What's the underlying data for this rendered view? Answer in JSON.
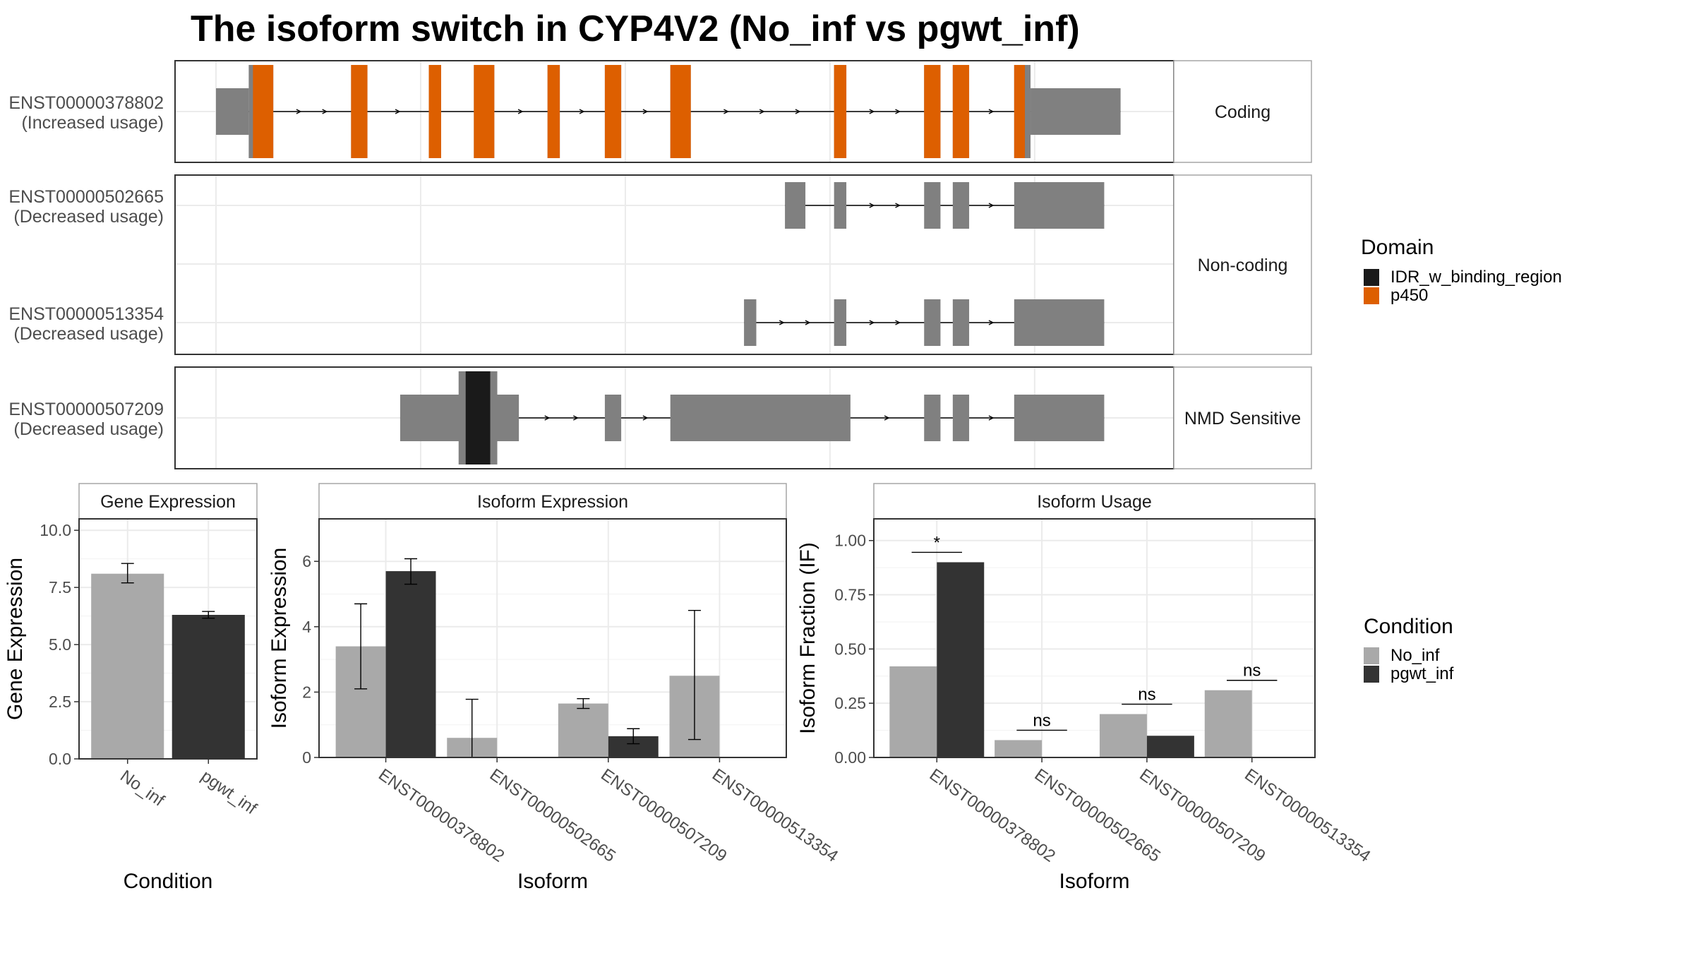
{
  "title": "The isoform switch in CYP4V2 (No_inf vs pgwt_inf)",
  "colors": {
    "exon": "#808080",
    "p450": "#DD5F00",
    "idr": "#1a1a1a",
    "no_inf": "#A9A9A9",
    "pgwt_inf": "#333333",
    "grid": "#EBEBEB",
    "strip_border": "#A6A6A6",
    "panel_border": "#333333"
  },
  "structure_panels": [
    {
      "strip": "Coding",
      "transcripts": [
        {
          "id": "ENST00000378802",
          "usage": "(Increased usage)",
          "utr5": [
            1.0,
            1.8
          ],
          "exons": [
            [
              1.8,
              2.4
            ],
            [
              4.3,
              4.7
            ],
            [
              6.2,
              6.5
            ],
            [
              7.3,
              7.8
            ],
            [
              9.1,
              9.4
            ],
            [
              10.5,
              10.9
            ],
            [
              12.1,
              12.6
            ],
            [
              16.1,
              16.4
            ],
            [
              18.3,
              18.7
            ],
            [
              19.0,
              19.4
            ],
            [
              20.5,
              20.9
            ]
          ],
          "utr3": [
            20.9,
            23.1
          ],
          "domains": [
            {
              "type": "p450",
              "from": 1.8,
              "to": 20.9
            }
          ]
        }
      ]
    },
    {
      "strip": "Non-coding",
      "transcripts": [
        {
          "id": "ENST00000502665",
          "usage": "(Decreased usage)",
          "exons": [
            [
              14.9,
              15.4
            ],
            [
              16.1,
              16.4
            ],
            [
              18.3,
              18.7
            ],
            [
              19.0,
              19.4
            ],
            [
              20.5,
              22.7
            ]
          ],
          "domains": []
        },
        {
          "id": "ENST00000513354",
          "usage": "(Decreased usage)",
          "exons": [
            [
              13.9,
              14.2
            ],
            [
              16.1,
              16.4
            ],
            [
              18.3,
              18.7
            ],
            [
              19.0,
              19.4
            ],
            [
              20.5,
              22.7
            ]
          ],
          "domains": []
        }
      ]
    },
    {
      "strip": "NMD Sensitive",
      "transcripts": [
        {
          "id": "ENST00000507209",
          "usage": "(Decreased usage)",
          "exons": [
            [
              5.5,
              8.4
            ],
            [
              10.5,
              10.9
            ],
            [
              12.1,
              16.5
            ],
            [
              18.3,
              18.7
            ],
            [
              19.0,
              19.4
            ],
            [
              20.5,
              22.7
            ]
          ],
          "domains": [
            {
              "type": "IDR_w_binding_region",
              "from": 7.1,
              "to": 7.7
            }
          ]
        }
      ]
    }
  ],
  "legend_domain": {
    "title": "Domain",
    "items": [
      {
        "label": "IDR_w_binding_region",
        "color": "#1a1a1a"
      },
      {
        "label": "p450",
        "color": "#DD5F00"
      }
    ]
  },
  "legend_condition": {
    "title": "Condition",
    "items": [
      {
        "label": "No_inf",
        "color": "#A9A9A9"
      },
      {
        "label": "pgwt_inf",
        "color": "#333333"
      }
    ]
  },
  "chart_data": [
    {
      "type": "bar",
      "strip": "Gene Expression",
      "xlabel": "Condition",
      "ylabel": "Gene Expression",
      "categories": [
        "No_inf",
        "pgwt_inf"
      ],
      "values": [
        8.1,
        6.3
      ],
      "errors": [
        [
          7.7,
          8.55
        ],
        [
          6.15,
          6.45
        ]
      ],
      "ylim": [
        0,
        10.5
      ],
      "yticks": [
        "0.0",
        "2.5",
        "5.0",
        "7.5",
        "10.0"
      ]
    },
    {
      "type": "bar",
      "strip": "Isoform Expression",
      "xlabel": "Isoform",
      "ylabel": "Isoform Expression",
      "categories": [
        "ENST00000378802",
        "ENST00000502665",
        "ENST00000507209",
        "ENST00000513354"
      ],
      "series": [
        {
          "name": "No_inf",
          "values": [
            3.4,
            0.6,
            1.65,
            2.5
          ],
          "errors": [
            [
              2.1,
              4.7
            ],
            [
              0.0,
              1.78
            ],
            [
              1.5,
              1.8
            ],
            [
              0.55,
              4.5
            ]
          ]
        },
        {
          "name": "pgwt_inf",
          "values": [
            5.7,
            0.0,
            0.65,
            0.0
          ],
          "errors": [
            [
              5.3,
              6.08
            ],
            [
              0.0,
              0.0
            ],
            [
              0.42,
              0.88
            ],
            [
              0.0,
              0.0
            ]
          ]
        }
      ],
      "ylim": [
        0,
        7.3
      ],
      "yticks": [
        "0",
        "2",
        "4",
        "6"
      ]
    },
    {
      "type": "bar",
      "strip": "Isoform Usage",
      "xlabel": "Isoform",
      "ylabel": "Isoform Fraction (IF)",
      "categories": [
        "ENST00000378802",
        "ENST00000502665",
        "ENST00000507209",
        "ENST00000513354"
      ],
      "series": [
        {
          "name": "No_inf",
          "values": [
            0.42,
            0.08,
            0.2,
            0.31
          ]
        },
        {
          "name": "pgwt_inf",
          "values": [
            0.9,
            0.0,
            0.1,
            0.0
          ]
        }
      ],
      "significance": [
        "*",
        "ns",
        "ns",
        "ns"
      ],
      "ylim": [
        0,
        1.1
      ],
      "yticks": [
        "0.00",
        "0.25",
        "0.50",
        "0.75",
        "1.00"
      ]
    }
  ]
}
